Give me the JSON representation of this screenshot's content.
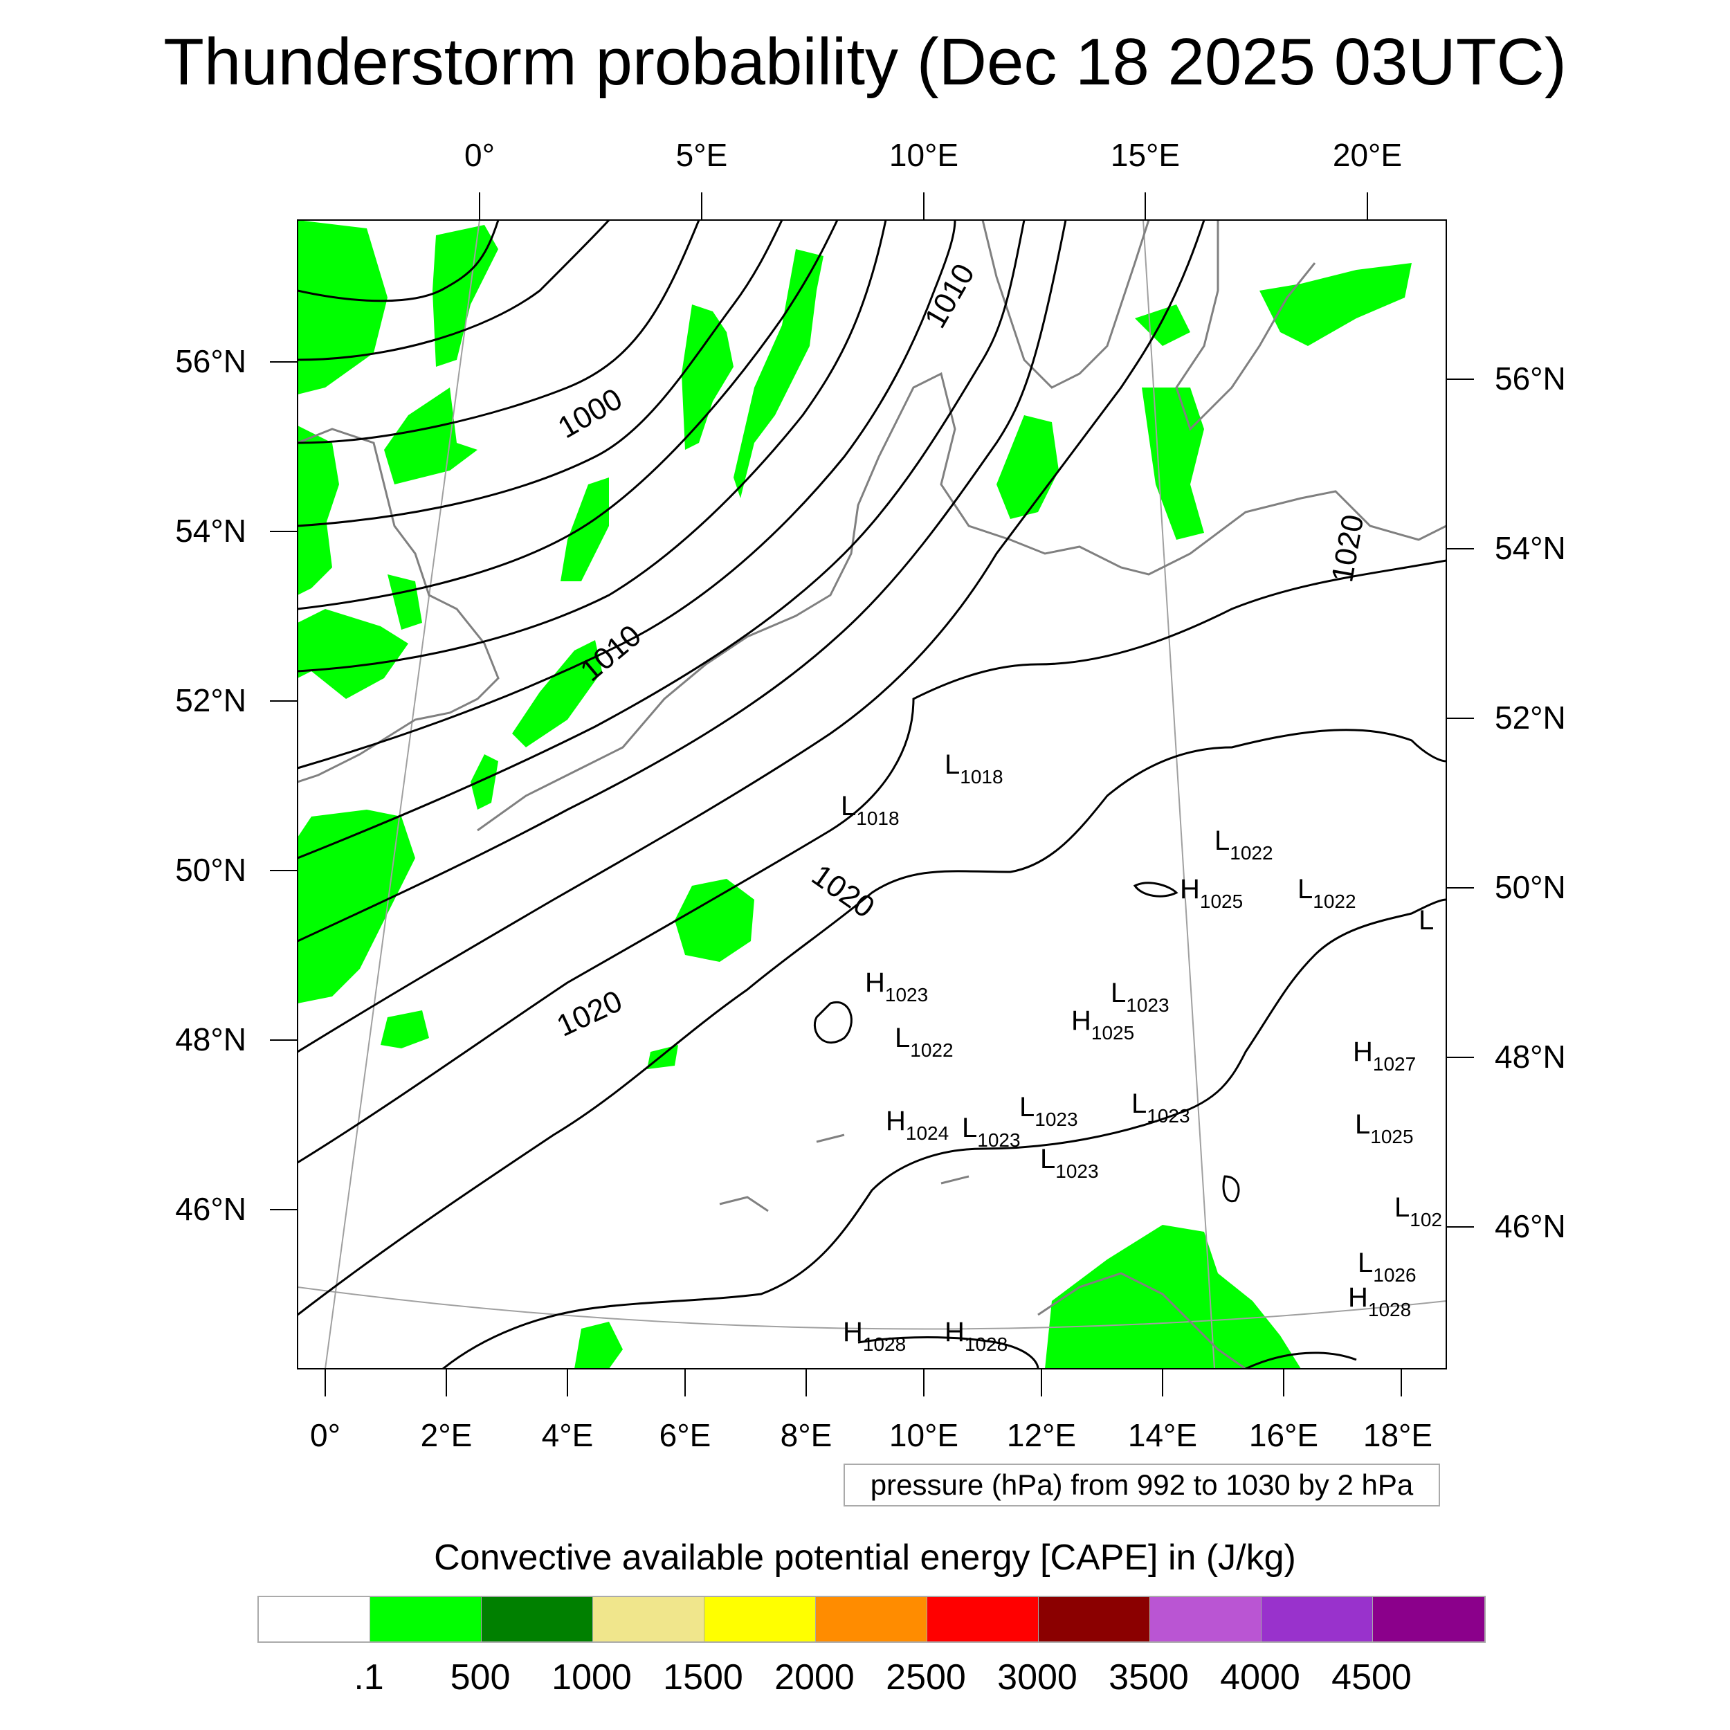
{
  "title": "Thunderstorm probability (Dec 18 2025 03UTC)",
  "top_lon_labels": [
    "0°",
    "5°E",
    "10°E",
    "15°E",
    "20°E"
  ],
  "bottom_lon_labels": [
    "0°",
    "2°E",
    "4°E",
    "6°E",
    "8°E",
    "10°E",
    "12°E",
    "14°E",
    "16°E",
    "18°E"
  ],
  "left_lat_labels": [
    "56°N",
    "54°N",
    "52°N",
    "50°N",
    "48°N",
    "46°N"
  ],
  "right_lat_labels": [
    "56°N",
    "54°N",
    "52°N",
    "50°N",
    "48°N",
    "46°N"
  ],
  "isobar_labels": [
    "1000",
    "1010",
    "1010",
    "1020",
    "1020",
    "1020"
  ],
  "pressure_centers": [
    {
      "type": "L",
      "value": "1018"
    },
    {
      "type": "L",
      "value": "1018"
    },
    {
      "type": "L",
      "value": "1022"
    },
    {
      "type": "H",
      "value": "1025"
    },
    {
      "type": "L",
      "value": "1022"
    },
    {
      "type": "L",
      "value": ""
    },
    {
      "type": "H",
      "value": "1023"
    },
    {
      "type": "L",
      "value": "1023"
    },
    {
      "type": "H",
      "value": "1025"
    },
    {
      "type": "L",
      "value": "1022"
    },
    {
      "type": "H",
      "value": "1027"
    },
    {
      "type": "H",
      "value": "1024"
    },
    {
      "type": "L",
      "value": "1023"
    },
    {
      "type": "L",
      "value": "1023"
    },
    {
      "type": "L",
      "value": "1023"
    },
    {
      "type": "L",
      "value": "1025"
    },
    {
      "type": "L",
      "value": "1023"
    },
    {
      "type": "L",
      "value": "102"
    },
    {
      "type": "L",
      "value": "1026"
    },
    {
      "type": "H",
      "value": "1028"
    },
    {
      "type": "H",
      "value": "1028"
    },
    {
      "type": "H",
      "value": "1028"
    }
  ],
  "pressure_note": "pressure (hPa) from 992 to 1030 by 2 hPa",
  "cape_title": "Convective available potential energy [CAPE] in (J/kg)",
  "colorbar": {
    "colors": [
      "#ffffff",
      "#00ff00",
      "#008000",
      "#f0e68c",
      "#ffff00",
      "#ff8c00",
      "#ff0000",
      "#8b0000",
      "#ba55d3",
      "#9932cc",
      "#8b008b"
    ],
    "labels": [
      ".1",
      "500",
      "1000",
      "1500",
      "2000",
      "2500",
      "3000",
      "3500",
      "4000",
      "4500"
    ]
  },
  "colors": {
    "cape_fill": "#00ff00",
    "coastline": "#808080",
    "isobar": "#000000",
    "graticule": "#a0a0a0"
  }
}
